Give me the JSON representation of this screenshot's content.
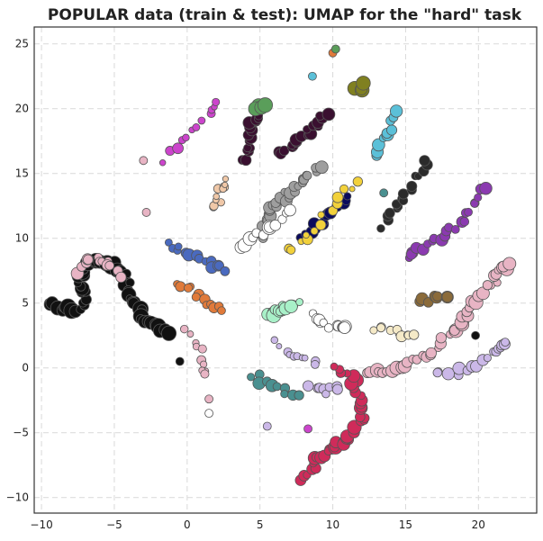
{
  "chart_data": {
    "type": "scatter",
    "title": "POPULAR data (train & test): UMAP for the \"hard\" task",
    "xlabel": "",
    "ylabel": "",
    "xlim": [
      -10.5,
      24
    ],
    "ylim": [
      -11.2,
      26.3
    ],
    "grid": true,
    "legend": "none",
    "x_ticks": [
      -10,
      -5,
      0,
      5,
      10,
      15,
      20
    ],
    "y_ticks": [
      -10,
      -5,
      0,
      5,
      10,
      15,
      20,
      25
    ],
    "x_tick_labels": [
      "−10",
      "−5",
      "0",
      "5",
      "10",
      "15",
      "20"
    ],
    "y_tick_labels": [
      "−10",
      "−5",
      "0",
      "5",
      "10",
      "15",
      "20",
      "25"
    ],
    "clusters": [
      {
        "color": "#111111",
        "path": [
          [
            -9.5,
            5
          ],
          [
            -8.5,
            4.6
          ],
          [
            -7.5,
            4.4
          ],
          [
            -7,
            5.5
          ],
          [
            -7.5,
            6.8
          ],
          [
            -7,
            7.8
          ],
          [
            -6,
            8.3
          ],
          [
            -5,
            8
          ],
          [
            -4.2,
            7
          ],
          [
            -4,
            6
          ],
          [
            -3.5,
            5
          ],
          [
            -3,
            4
          ],
          [
            -2.2,
            3.2
          ],
          [
            -1.5,
            2.6
          ]
        ],
        "n": 60,
        "size": [
          4,
          9
        ]
      },
      {
        "color": "#e8b4c4",
        "path": [
          [
            -7.5,
            7.5
          ],
          [
            -6.5,
            8.5
          ],
          [
            -5.5,
            8.2
          ],
          [
            -4.5,
            6.8
          ]
        ],
        "n": 14,
        "size": [
          4,
          7
        ]
      },
      {
        "color": "#cf2b5a",
        "path": [
          [
            8,
            -8.5
          ],
          [
            9,
            -7
          ],
          [
            10,
            -6.2
          ],
          [
            11,
            -5.5
          ],
          [
            12,
            -4
          ],
          [
            12,
            -2.5
          ],
          [
            11.5,
            -1
          ],
          [
            10,
            0
          ]
        ],
        "n": 45,
        "size": [
          4,
          8
        ]
      },
      {
        "color": "#e8b4c4",
        "path": [
          [
            12.5,
            -0.2
          ],
          [
            14,
            -0.2
          ],
          [
            15.5,
            0.5
          ],
          [
            17,
            1.5
          ],
          [
            18.5,
            3
          ],
          [
            19.5,
            4.5
          ],
          [
            20.5,
            6
          ],
          [
            21.5,
            7.5
          ],
          [
            22,
            8
          ]
        ],
        "n": 45,
        "size": [
          4,
          8
        ]
      },
      {
        "color": "#cbb8e8",
        "path": [
          [
            17,
            -0.5
          ],
          [
            18.5,
            -0.3
          ],
          [
            20,
            0.3
          ],
          [
            21.5,
            1.5
          ],
          [
            22,
            2.2
          ]
        ],
        "n": 18,
        "size": [
          4,
          7
        ]
      },
      {
        "color": "#3a1030",
        "path": [
          [
            4,
            16
          ],
          [
            4.2,
            17.5
          ],
          [
            4.5,
            19
          ],
          [
            5,
            20.2
          ]
        ],
        "n": 20,
        "size": [
          4,
          7
        ]
      },
      {
        "color": "#3a1030",
        "path": [
          [
            6.5,
            16.5
          ],
          [
            7.5,
            17.5
          ],
          [
            8.5,
            18.5
          ],
          [
            9.5,
            19.5
          ]
        ],
        "n": 18,
        "size": [
          4,
          7
        ]
      },
      {
        "color": "#9e9e9e",
        "path": [
          [
            5,
            10
          ],
          [
            5.5,
            11.5
          ],
          [
            6,
            12.5
          ],
          [
            7,
            13.5
          ],
          [
            8,
            14.5
          ],
          [
            9,
            15.5
          ]
        ],
        "n": 30,
        "size": [
          4,
          7
        ]
      },
      {
        "color": "#ffffff",
        "path": [
          [
            3.5,
            9.5
          ],
          [
            5.5,
            10.5
          ],
          [
            7,
            12
          ]
        ],
        "n": 12,
        "size": [
          4,
          8
        ]
      },
      {
        "color": "#0a0a5c",
        "path": [
          [
            8,
            10
          ],
          [
            9,
            11
          ],
          [
            10,
            12
          ],
          [
            11,
            13
          ]
        ],
        "n": 14,
        "size": [
          4,
          7
        ]
      },
      {
        "color": "#f2d13b",
        "path": [
          [
            7,
            9
          ],
          [
            8.5,
            10.5
          ],
          [
            10,
            12.5
          ],
          [
            11.5,
            14.5
          ]
        ],
        "n": 14,
        "size": [
          3,
          6
        ]
      },
      {
        "color": "#2b2b2b",
        "path": [
          [
            13.5,
            11
          ],
          [
            14.5,
            12.5
          ],
          [
            15.5,
            14
          ],
          [
            16.5,
            16
          ]
        ],
        "n": 18,
        "size": [
          4,
          6
        ]
      },
      {
        "color": "#8b3ab0",
        "path": [
          [
            15,
            8.5
          ],
          [
            16.5,
            9.5
          ],
          [
            18,
            10.5
          ],
          [
            19.5,
            12
          ],
          [
            20.5,
            14
          ]
        ],
        "n": 22,
        "size": [
          4,
          7
        ]
      },
      {
        "color": "#a8f0c8",
        "path": [
          [
            5.5,
            4
          ],
          [
            6.5,
            4.5
          ],
          [
            7.5,
            5
          ]
        ],
        "n": 12,
        "size": [
          4,
          8
        ]
      },
      {
        "color": "#8b6b3a",
        "path": [
          [
            16,
            5.2
          ],
          [
            17,
            5.3
          ],
          [
            18,
            5.5
          ]
        ],
        "n": 8,
        "size": [
          4,
          7
        ]
      },
      {
        "color": "#ffffff",
        "path": [
          [
            8.5,
            4
          ],
          [
            10,
            3.2
          ],
          [
            11,
            3
          ]
        ],
        "n": 12,
        "size": [
          4,
          7
        ]
      },
      {
        "color": "#f5eac8",
        "path": [
          [
            13,
            3
          ],
          [
            14.5,
            2.8
          ],
          [
            15.5,
            2.5
          ]
        ],
        "n": 12,
        "size": [
          4,
          6
        ]
      },
      {
        "color": "#f0c8a8",
        "path": [
          [
            2,
            12.5
          ],
          [
            2.2,
            13.5
          ],
          [
            2.5,
            14.5
          ]
        ],
        "n": 10,
        "size": [
          3,
          5
        ]
      },
      {
        "color": "#4a6abf",
        "path": [
          [
            -1.5,
            9.5
          ],
          [
            0,
            9
          ],
          [
            1.5,
            8.2
          ],
          [
            2.5,
            7.5
          ]
        ],
        "n": 14,
        "size": [
          4,
          7
        ]
      },
      {
        "color": "#e07a3a",
        "path": [
          [
            -0.5,
            6.5
          ],
          [
            0.5,
            5.8
          ],
          [
            1.5,
            5
          ],
          [
            2.5,
            4.5
          ]
        ],
        "n": 12,
        "size": [
          4,
          6
        ]
      },
      {
        "color": "#e8b4c4",
        "path": [
          [
            0,
            3
          ],
          [
            0.5,
            2
          ],
          [
            1,
            1
          ],
          [
            1.2,
            0
          ],
          [
            1.2,
            -0.5
          ]
        ],
        "n": 10,
        "size": [
          3,
          5
        ]
      },
      {
        "color": "#cc44cc",
        "path": [
          [
            -1.5,
            16
          ],
          [
            -0.5,
            17.5
          ],
          [
            0.5,
            18.5
          ],
          [
            1.5,
            19.5
          ],
          [
            2,
            20.5
          ]
        ],
        "n": 12,
        "size": [
          3,
          6
        ]
      },
      {
        "color": "#5bc0d8",
        "path": [
          [
            13,
            16.5
          ],
          [
            13.5,
            17.5
          ],
          [
            14,
            18.5
          ],
          [
            14.5,
            20
          ]
        ],
        "n": 10,
        "size": [
          4,
          7
        ]
      },
      {
        "color": "#5a9e5a",
        "path": [
          [
            4.8,
            20
          ],
          [
            5.2,
            20.5
          ]
        ],
        "n": 4,
        "size": [
          6,
          9
        ]
      },
      {
        "color": "#808020",
        "path": [
          [
            11.7,
            21.5
          ],
          [
            12,
            21.8
          ]
        ],
        "n": 4,
        "size": [
          6,
          9
        ]
      },
      {
        "color": "#cbb8e8",
        "path": [
          [
            6,
            2
          ],
          [
            7,
            1.2
          ],
          [
            8,
            0.8
          ],
          [
            9,
            0.5
          ]
        ],
        "n": 10,
        "size": [
          3,
          5
        ]
      },
      {
        "color": "#4a9090",
        "path": [
          [
            4.5,
            -0.5
          ],
          [
            5.5,
            -1.2
          ],
          [
            6.5,
            -1.8
          ],
          [
            7.5,
            -2.3
          ]
        ],
        "n": 10,
        "size": [
          4,
          7
        ]
      },
      {
        "color": "#cbb8e8",
        "path": [
          [
            8.5,
            -1.5
          ],
          [
            9.5,
            -1.8
          ],
          [
            10.5,
            -1.5
          ]
        ],
        "n": 8,
        "size": [
          4,
          6
        ]
      }
    ],
    "isolated_points": [
      {
        "x": -3,
        "y": 16,
        "color": "#e8b4c4"
      },
      {
        "x": -2.8,
        "y": 12,
        "color": "#e8b4c4"
      },
      {
        "x": 8.6,
        "y": 22.5,
        "color": "#5bc0d8"
      },
      {
        "x": 10,
        "y": 24.3,
        "color": "#e07a3a"
      },
      {
        "x": 10.2,
        "y": 24.6,
        "color": "#5a9e5a"
      },
      {
        "x": 13.5,
        "y": 13.5,
        "color": "#4a9090"
      },
      {
        "x": 1.5,
        "y": -2.4,
        "color": "#e8b4c4"
      },
      {
        "x": 1.5,
        "y": -3.5,
        "color": "#ffffff"
      },
      {
        "x": 5.5,
        "y": -4.5,
        "color": "#cbb8e8"
      },
      {
        "x": 8.3,
        "y": -4.7,
        "color": "#cc44cc"
      },
      {
        "x": 19.8,
        "y": 2.5,
        "color": "#111111"
      },
      {
        "x": -0.5,
        "y": 0.5,
        "color": "#111111"
      }
    ]
  }
}
